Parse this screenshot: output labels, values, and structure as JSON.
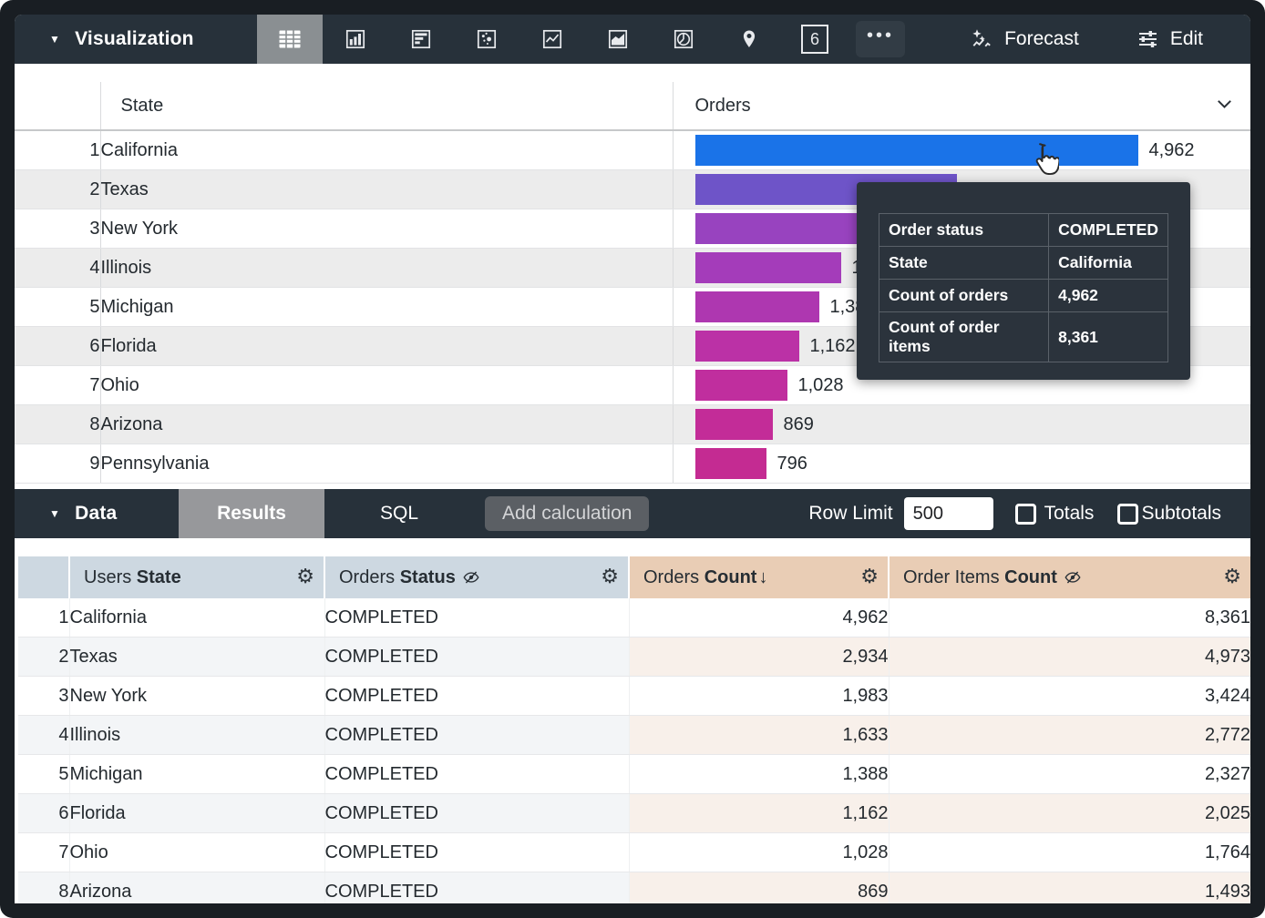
{
  "viz_toolbar": {
    "menu_label": "Visualization",
    "tabs": [
      {
        "icon": "table-chart-icon",
        "selected": true
      },
      {
        "icon": "column-chart-icon",
        "selected": false
      },
      {
        "icon": "bar-chart-icon",
        "selected": false
      },
      {
        "icon": "scatter-plot-icon",
        "selected": false
      },
      {
        "icon": "line-chart-icon",
        "selected": false
      },
      {
        "icon": "area-chart-icon",
        "selected": false
      },
      {
        "icon": "pie-chart-icon",
        "selected": false
      },
      {
        "icon": "map-pin-icon",
        "selected": false
      },
      {
        "icon": "single-value-icon",
        "glyph": "6",
        "selected": false
      },
      {
        "icon": "more-options-icon",
        "selected": false
      }
    ],
    "forecast_label": "Forecast",
    "edit_label": "Edit"
  },
  "viz_table": {
    "state_header": "State",
    "orders_header": "Orders",
    "rows": [
      {
        "rank": "1",
        "state": "California",
        "value": 4962,
        "label": "4,962"
      },
      {
        "rank": "2",
        "state": "Texas",
        "value": 2934,
        "label": "2,934"
      },
      {
        "rank": "3",
        "state": "New York",
        "value": 1983,
        "label": "1,983"
      },
      {
        "rank": "4",
        "state": "Illinois",
        "value": 1633,
        "label": "1,633"
      },
      {
        "rank": "5",
        "state": "Michigan",
        "value": 1388,
        "label": "1,388"
      },
      {
        "rank": "6",
        "state": "Florida",
        "value": 1162,
        "label": "1,162"
      },
      {
        "rank": "7",
        "state": "Ohio",
        "value": 1028,
        "label": "1,028"
      },
      {
        "rank": "8",
        "state": "Arizona",
        "value": 869,
        "label": "869"
      },
      {
        "rank": "9",
        "state": "Pennsylvania",
        "value": 796,
        "label": "796"
      }
    ]
  },
  "tooltip": {
    "rows": [
      {
        "label": "Order status",
        "value": "COMPLETED"
      },
      {
        "label": "State",
        "value": "California"
      },
      {
        "label": "Count of orders",
        "value": "4,962"
      },
      {
        "label": "Count of order items",
        "value": "8,361"
      }
    ]
  },
  "data_toolbar": {
    "menu_label": "Data",
    "results_tab": "Results",
    "sql_tab": "SQL",
    "add_calculation_label": "Add calculation",
    "row_limit_label": "Row Limit",
    "row_limit_value": "500",
    "totals_label": "Totals",
    "subtotals_label": "Subtotals"
  },
  "data_table": {
    "headers": [
      {
        "prefix": "Users",
        "field": "State",
        "type": "dimension",
        "hidden": false,
        "sorted": false
      },
      {
        "prefix": "Orders",
        "field": "Status",
        "type": "dimension",
        "hidden": true,
        "sorted": false
      },
      {
        "prefix": "Orders",
        "field": "Count",
        "type": "measure",
        "hidden": false,
        "sorted": true
      },
      {
        "prefix": "Order Items",
        "field": "Count",
        "type": "measure",
        "hidden": true,
        "sorted": false
      }
    ],
    "rows": [
      {
        "num": "1",
        "state": "California",
        "status": "COMPLETED",
        "orders_count": "4,962",
        "order_items_count": "8,361"
      },
      {
        "num": "2",
        "state": "Texas",
        "status": "COMPLETED",
        "orders_count": "2,934",
        "order_items_count": "4,973"
      },
      {
        "num": "3",
        "state": "New York",
        "status": "COMPLETED",
        "orders_count": "1,983",
        "order_items_count": "3,424"
      },
      {
        "num": "4",
        "state": "Illinois",
        "status": "COMPLETED",
        "orders_count": "1,633",
        "order_items_count": "2,772"
      },
      {
        "num": "5",
        "state": "Michigan",
        "status": "COMPLETED",
        "orders_count": "1,388",
        "order_items_count": "2,327"
      },
      {
        "num": "6",
        "state": "Florida",
        "status": "COMPLETED",
        "orders_count": "1,162",
        "order_items_count": "2,025"
      },
      {
        "num": "7",
        "state": "Ohio",
        "status": "COMPLETED",
        "orders_count": "1,028",
        "order_items_count": "1,764"
      },
      {
        "num": "8",
        "state": "Arizona",
        "status": "COMPLETED",
        "orders_count": "869",
        "order_items_count": "1,493"
      }
    ]
  },
  "colors": {
    "toolbar_bg": "#27313a",
    "selected_tab_bg": "#8a8f92",
    "tooltip_bg": "#2b333c",
    "header_dimension_bg": "#cdd8e1",
    "header_measure_bg": "#e9cdb5",
    "bars": [
      "#1a73e8",
      "#6e54c8",
      "#9843bf",
      "#a43cba",
      "#ae37b0",
      "#bb31a6",
      "#c02e9e",
      "#c32c98",
      "#c42b92"
    ]
  }
}
